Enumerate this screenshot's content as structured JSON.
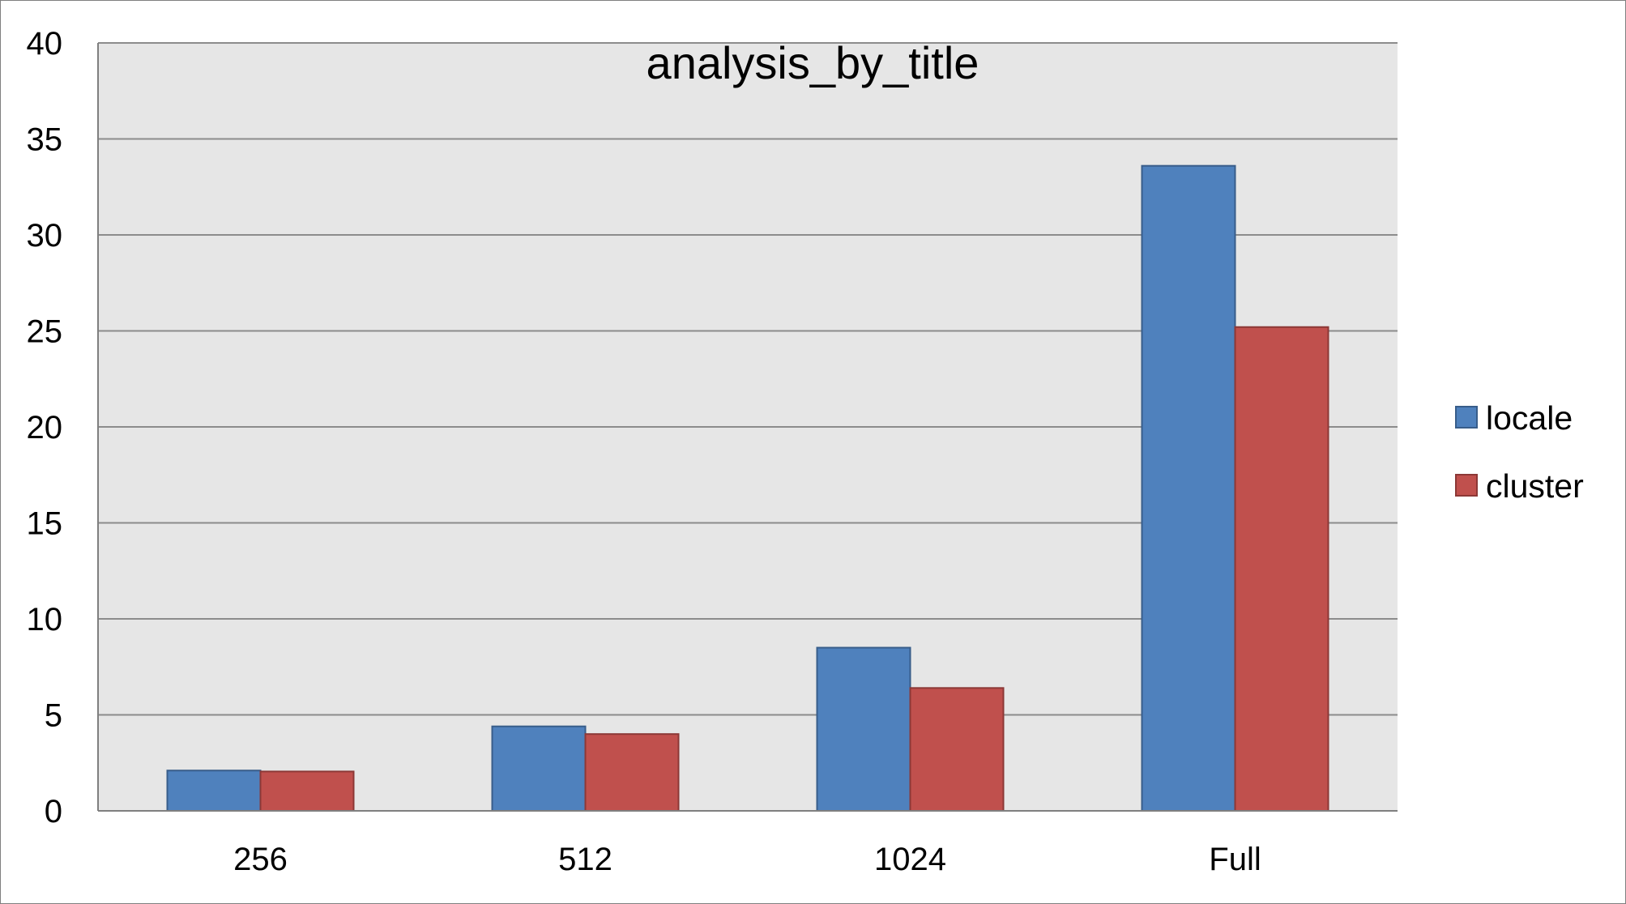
{
  "chart_data": {
    "type": "bar",
    "title": "analysis_by_title",
    "xlabel": "",
    "ylabel": "",
    "categories": [
      "256",
      "512",
      "1024",
      "Full"
    ],
    "series": [
      {
        "name": "locale",
        "values": [
          2.1,
          4.4,
          8.5,
          33.6
        ],
        "color": "#4F81BD",
        "stroke": "#385D8A"
      },
      {
        "name": "cluster",
        "values": [
          2.05,
          4.0,
          6.4,
          25.2
        ],
        "color": "#C0504D",
        "stroke": "#8C3836"
      }
    ],
    "ylim": [
      0,
      40
    ],
    "yticks": [
      0,
      5,
      10,
      15,
      20,
      25,
      30,
      35,
      40
    ],
    "grid": true,
    "legend_position": "right",
    "plot_background": "#E6E6E6"
  }
}
